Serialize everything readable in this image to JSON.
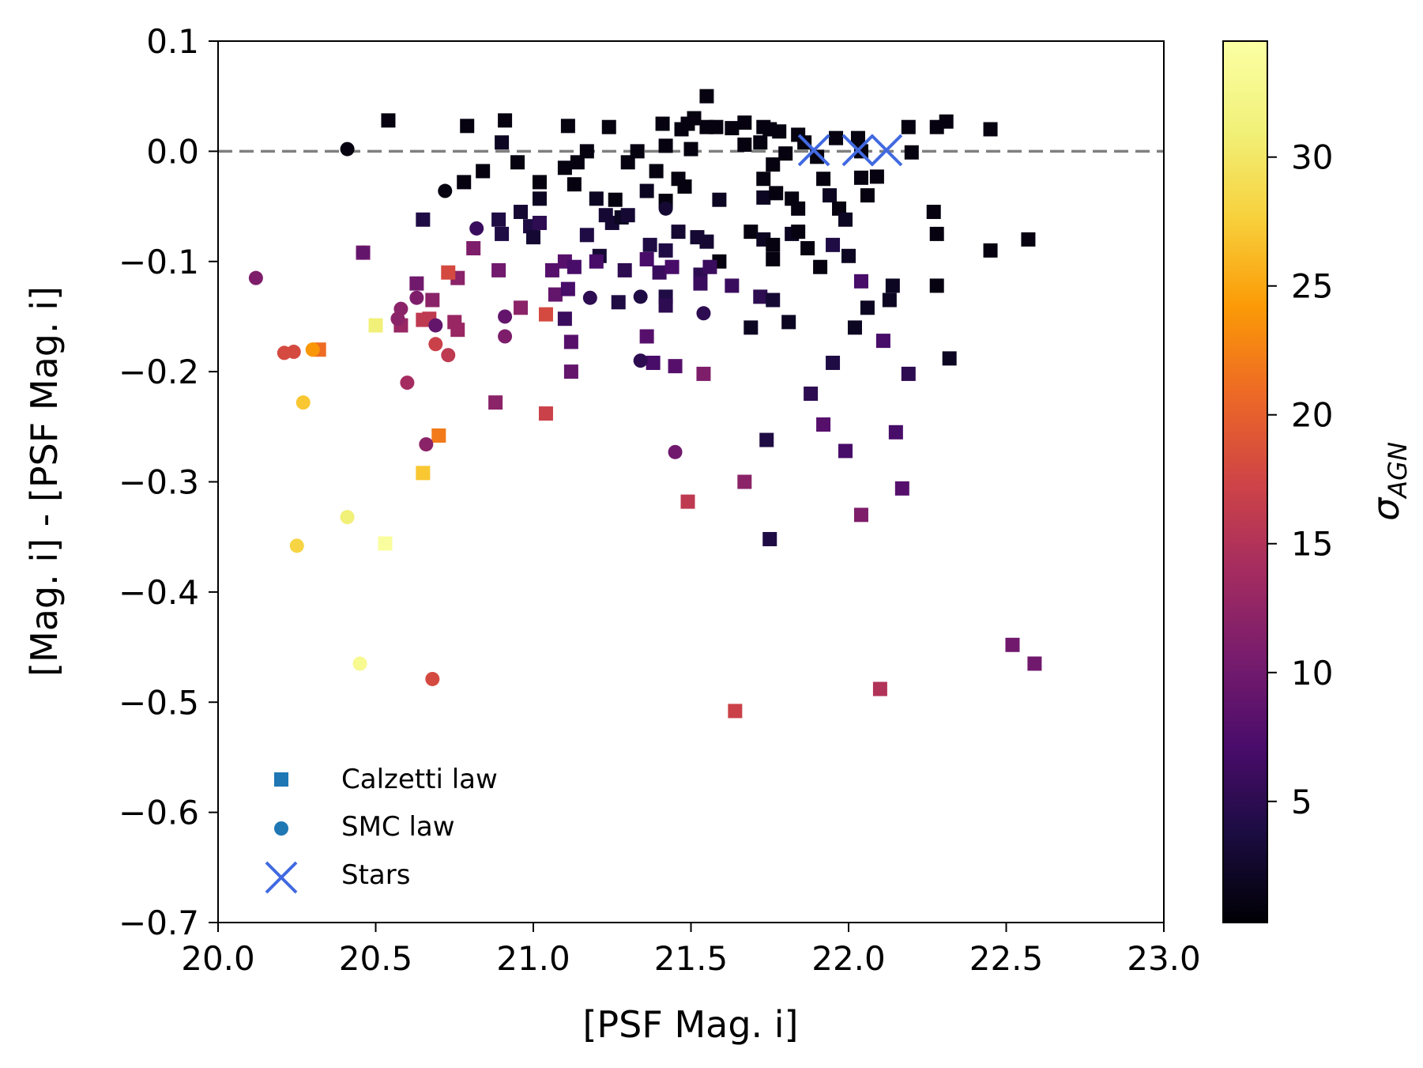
{
  "chart_data": {
    "type": "scatter",
    "title": "",
    "xlabel": "[PSF Mag. i]",
    "ylabel": "[Mag. i] - [PSF Mag. i]",
    "xlim": [
      20.0,
      23.0
    ],
    "ylim": [
      -0.7,
      0.1
    ],
    "xticks": [
      20.0,
      20.5,
      21.0,
      21.5,
      22.0,
      22.5,
      23.0
    ],
    "xtick_labels": [
      "20.0",
      "20.5",
      "21.0",
      "21.5",
      "22.0",
      "22.5",
      "23.0"
    ],
    "yticks": [
      0.1,
      0.0,
      -0.1,
      -0.2,
      -0.3,
      -0.4,
      -0.5,
      -0.6,
      -0.7
    ],
    "ytick_labels": [
      "0.1",
      "0.0",
      "−0.1",
      "−0.2",
      "−0.3",
      "−0.4",
      "−0.5",
      "−0.6",
      "−0.7"
    ],
    "reference_line": {
      "y": 0.0,
      "style": "dashed",
      "color": "#808080"
    },
    "colorbar": {
      "label": "σAGN",
      "label_main": "σ",
      "label_sub": "AGN",
      "range": [
        0.3,
        34.5
      ],
      "ticks": [
        5,
        10,
        15,
        20,
        25,
        30
      ],
      "tick_labels": [
        "5",
        "10",
        "15",
        "20",
        "25",
        "30"
      ],
      "colormap": "inferno"
    },
    "legend": {
      "position": "lower-left",
      "entries": [
        {
          "label": "Calzetti law",
          "marker": "square",
          "color": "#1f77b4"
        },
        {
          "label": "SMC law",
          "marker": "circle",
          "color": "#1f77b4"
        },
        {
          "label": "Stars",
          "marker": "x",
          "color": "#4169e1"
        }
      ]
    },
    "series": [
      {
        "name": "Calzetti law",
        "marker": "square",
        "points": [
          [
            20.54,
            0.028,
            1
          ],
          [
            20.79,
            0.023,
            1
          ],
          [
            20.91,
            0.028,
            1
          ],
          [
            21.11,
            0.023,
            1
          ],
          [
            21.24,
            0.022,
            1
          ],
          [
            21.41,
            0.025,
            1
          ],
          [
            21.47,
            0.02,
            1
          ],
          [
            21.49,
            0.025,
            1
          ],
          [
            21.51,
            0.03,
            1
          ],
          [
            21.55,
            0.05,
            1
          ],
          [
            21.55,
            0.022,
            1
          ],
          [
            21.58,
            0.022,
            1
          ],
          [
            21.63,
            0.021,
            1
          ],
          [
            21.67,
            0.026,
            1
          ],
          [
            21.73,
            0.022,
            1
          ],
          [
            21.75,
            0.02,
            1
          ],
          [
            21.78,
            0.018,
            1
          ],
          [
            21.84,
            0.015,
            1
          ],
          [
            21.96,
            0.012,
            1
          ],
          [
            22.03,
            0.012,
            1
          ],
          [
            22.19,
            0.022,
            1
          ],
          [
            22.28,
            0.022,
            1
          ],
          [
            22.31,
            0.027,
            1
          ],
          [
            22.45,
            0.02,
            1
          ],
          [
            21.17,
            0.0,
            1
          ],
          [
            21.33,
            0.0,
            1
          ],
          [
            21.42,
            0.005,
            1
          ],
          [
            21.5,
            0.002,
            1
          ],
          [
            21.67,
            0.006,
            1
          ],
          [
            21.72,
            0.008,
            1
          ],
          [
            21.86,
            0.008,
            1
          ],
          [
            22.04,
            0.0,
            1
          ],
          [
            22.2,
            -0.001,
            1
          ],
          [
            22.09,
            -0.023,
            1
          ],
          [
            20.9,
            0.008,
            2
          ],
          [
            20.95,
            -0.01,
            1
          ],
          [
            20.78,
            -0.028,
            1
          ],
          [
            20.84,
            -0.018,
            1
          ],
          [
            21.1,
            -0.015,
            1
          ],
          [
            21.14,
            -0.01,
            1
          ],
          [
            21.3,
            -0.01,
            1
          ],
          [
            21.39,
            -0.018,
            1
          ],
          [
            21.13,
            -0.03,
            1
          ],
          [
            21.46,
            -0.025,
            1
          ],
          [
            21.48,
            -0.032,
            1
          ],
          [
            21.73,
            -0.025,
            1
          ],
          [
            21.76,
            -0.012,
            1
          ],
          [
            21.8,
            -0.002,
            1
          ],
          [
            21.9,
            -0.005,
            1
          ],
          [
            21.92,
            -0.025,
            1
          ],
          [
            22.04,
            -0.024,
            1
          ],
          [
            22.06,
            -0.04,
            1
          ],
          [
            21.02,
            -0.028,
            1
          ],
          [
            21.02,
            -0.043,
            2
          ],
          [
            21.2,
            -0.043,
            2
          ],
          [
            21.26,
            -0.044,
            1
          ],
          [
            21.36,
            -0.036,
            2
          ],
          [
            21.42,
            -0.045,
            1
          ],
          [
            21.59,
            -0.044,
            2
          ],
          [
            21.73,
            -0.042,
            2
          ],
          [
            21.77,
            -0.038,
            1
          ],
          [
            21.82,
            -0.043,
            1
          ],
          [
            21.84,
            -0.052,
            1
          ],
          [
            21.94,
            -0.04,
            2
          ],
          [
            21.97,
            -0.052,
            1
          ],
          [
            21.99,
            -0.062,
            2
          ],
          [
            22.27,
            -0.055,
            1
          ],
          [
            20.65,
            -0.062,
            4
          ],
          [
            20.89,
            -0.062,
            4
          ],
          [
            20.9,
            -0.075,
            4
          ],
          [
            20.96,
            -0.055,
            3
          ],
          [
            20.99,
            -0.068,
            4
          ],
          [
            21.0,
            -0.078,
            3
          ],
          [
            21.02,
            -0.065,
            5
          ],
          [
            21.23,
            -0.058,
            3
          ],
          [
            21.25,
            -0.065,
            3
          ],
          [
            21.28,
            -0.06,
            2
          ],
          [
            21.3,
            -0.058,
            3
          ],
          [
            21.17,
            -0.076,
            4
          ],
          [
            21.21,
            -0.095,
            3
          ],
          [
            21.37,
            -0.085,
            4
          ],
          [
            21.42,
            -0.09,
            4
          ],
          [
            21.46,
            -0.073,
            3
          ],
          [
            21.52,
            -0.078,
            3
          ],
          [
            21.55,
            -0.082,
            3
          ],
          [
            21.69,
            -0.073,
            1
          ],
          [
            21.73,
            -0.08,
            2
          ],
          [
            21.76,
            -0.085,
            1
          ],
          [
            21.82,
            -0.075,
            2
          ],
          [
            21.84,
            -0.073,
            1
          ],
          [
            21.87,
            -0.088,
            1
          ],
          [
            21.91,
            -0.105,
            1
          ],
          [
            21.95,
            -0.085,
            4
          ],
          [
            22.0,
            -0.095,
            2
          ],
          [
            22.28,
            -0.075,
            1
          ],
          [
            22.45,
            -0.09,
            1
          ],
          [
            22.57,
            -0.08,
            1
          ],
          [
            21.59,
            -0.1,
            1
          ],
          [
            21.76,
            -0.098,
            1
          ],
          [
            20.46,
            -0.092,
            10
          ],
          [
            20.81,
            -0.088,
            11
          ],
          [
            20.89,
            -0.108,
            10
          ],
          [
            21.06,
            -0.108,
            8
          ],
          [
            21.1,
            -0.1,
            8
          ],
          [
            21.13,
            -0.105,
            7
          ],
          [
            21.2,
            -0.1,
            7
          ],
          [
            21.29,
            -0.108,
            5
          ],
          [
            21.36,
            -0.098,
            7
          ],
          [
            21.4,
            -0.11,
            6
          ],
          [
            21.44,
            -0.105,
            7
          ],
          [
            21.53,
            -0.112,
            5
          ],
          [
            21.56,
            -0.105,
            6
          ],
          [
            21.53,
            -0.12,
            6
          ],
          [
            21.63,
            -0.122,
            6
          ],
          [
            21.27,
            -0.137,
            4
          ],
          [
            21.42,
            -0.132,
            4
          ],
          [
            21.42,
            -0.14,
            5
          ],
          [
            21.07,
            -0.13,
            9
          ],
          [
            21.11,
            -0.125,
            7
          ],
          [
            21.1,
            -0.152,
            6
          ],
          [
            21.12,
            -0.173,
            8
          ],
          [
            21.12,
            -0.2,
            9
          ],
          [
            21.36,
            -0.168,
            8
          ],
          [
            21.38,
            -0.192,
            7
          ],
          [
            21.45,
            -0.195,
            8
          ],
          [
            21.69,
            -0.16,
            2
          ],
          [
            21.72,
            -0.132,
            5
          ],
          [
            21.76,
            -0.135,
            3
          ],
          [
            21.81,
            -0.155,
            2
          ],
          [
            22.02,
            -0.16,
            2
          ],
          [
            22.06,
            -0.142,
            2
          ],
          [
            22.04,
            -0.118,
            7
          ],
          [
            22.13,
            -0.135,
            2
          ],
          [
            22.14,
            -0.122,
            2
          ],
          [
            22.28,
            -0.122,
            1
          ],
          [
            22.32,
            -0.188,
            2
          ],
          [
            22.19,
            -0.202,
            5
          ],
          [
            22.11,
            -0.172,
            7
          ],
          [
            21.95,
            -0.192,
            4
          ],
          [
            21.88,
            -0.22,
            5
          ],
          [
            21.92,
            -0.248,
            8
          ],
          [
            21.99,
            -0.272,
            7
          ],
          [
            22.15,
            -0.255,
            7
          ],
          [
            22.17,
            -0.306,
            8
          ],
          [
            22.04,
            -0.33,
            11
          ],
          [
            21.74,
            -0.262,
            4
          ],
          [
            21.75,
            -0.352,
            4
          ],
          [
            21.67,
            -0.3,
            12
          ],
          [
            21.54,
            -0.202,
            11
          ],
          [
            20.63,
            -0.12,
            10
          ],
          [
            20.68,
            -0.135,
            12
          ],
          [
            20.58,
            -0.158,
            13
          ],
          [
            20.76,
            -0.115,
            12
          ],
          [
            20.75,
            -0.155,
            13
          ],
          [
            20.76,
            -0.162,
            13
          ],
          [
            20.88,
            -0.228,
            12
          ],
          [
            20.96,
            -0.142,
            12
          ],
          [
            20.73,
            -0.11,
            18
          ],
          [
            20.65,
            -0.153,
            16
          ],
          [
            20.67,
            -0.152,
            16
          ],
          [
            21.04,
            -0.148,
            18
          ],
          [
            21.04,
            -0.238,
            17
          ],
          [
            21.49,
            -0.318,
            16
          ],
          [
            21.64,
            -0.508,
            17
          ],
          [
            22.1,
            -0.488,
            15
          ],
          [
            22.52,
            -0.448,
            10
          ],
          [
            22.59,
            -0.465,
            10
          ],
          [
            20.32,
            -0.18,
            21
          ],
          [
            20.7,
            -0.258,
            22
          ],
          [
            20.5,
            -0.158,
            31
          ],
          [
            20.65,
            -0.292,
            27
          ],
          [
            20.53,
            -0.356,
            34
          ]
        ]
      },
      {
        "name": "SMC law",
        "marker": "circle",
        "points": [
          [
            20.41,
            0.002,
            1
          ],
          [
            20.72,
            -0.036,
            1
          ],
          [
            21.42,
            -0.052,
            3
          ],
          [
            20.82,
            -0.07,
            6
          ],
          [
            21.18,
            -0.133,
            5
          ],
          [
            21.34,
            -0.132,
            4
          ],
          [
            21.54,
            -0.147,
            5
          ],
          [
            21.34,
            -0.19,
            5
          ],
          [
            21.45,
            -0.273,
            10
          ],
          [
            20.12,
            -0.115,
            11
          ],
          [
            20.46,
            -0.092,
            9
          ],
          [
            20.63,
            -0.133,
            11
          ],
          [
            20.57,
            -0.152,
            12
          ],
          [
            20.58,
            -0.143,
            12
          ],
          [
            20.69,
            -0.158,
            9
          ],
          [
            20.91,
            -0.15,
            9
          ],
          [
            20.91,
            -0.168,
            11
          ],
          [
            20.66,
            -0.266,
            12
          ],
          [
            20.6,
            -0.21,
            14
          ],
          [
            20.69,
            -0.175,
            17
          ],
          [
            20.73,
            -0.185,
            16
          ],
          [
            20.21,
            -0.183,
            18
          ],
          [
            20.24,
            -0.182,
            18
          ],
          [
            20.3,
            -0.18,
            24
          ],
          [
            20.27,
            -0.228,
            27
          ],
          [
            20.25,
            -0.358,
            28
          ],
          [
            20.41,
            -0.332,
            31
          ],
          [
            20.45,
            -0.465,
            33
          ],
          [
            20.68,
            -0.479,
            18
          ]
        ]
      },
      {
        "name": "Stars",
        "marker": "x",
        "points": [
          [
            21.89,
            0.001
          ],
          [
            22.03,
            0.001
          ],
          [
            22.12,
            0.001
          ]
        ]
      }
    ]
  }
}
